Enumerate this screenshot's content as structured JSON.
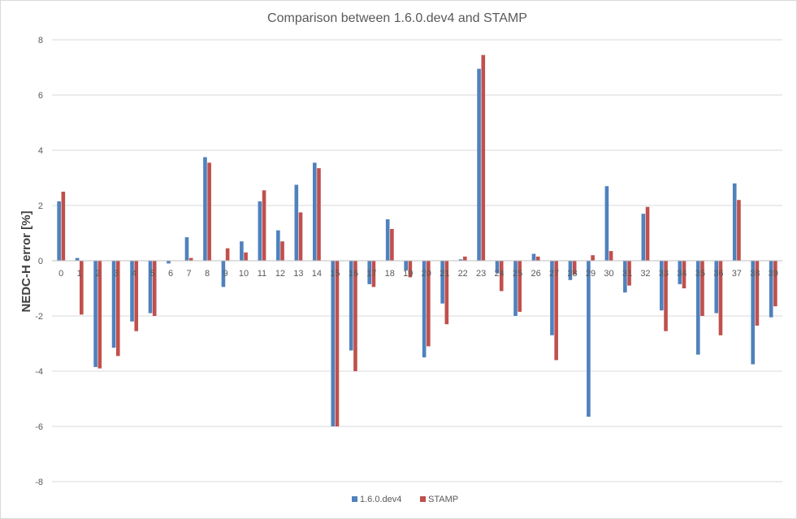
{
  "chart_data": {
    "type": "bar",
    "title": "Comparison between 1.6.0.dev4 and STAMP",
    "xlabel": "",
    "ylabel": "NEDC-H error [%]",
    "ylim": [
      -8,
      8
    ],
    "yticks": [
      -8,
      -6,
      -4,
      -2,
      0,
      2,
      4,
      6,
      8
    ],
    "grid": true,
    "legend": "bottom",
    "categories": [
      "0",
      "1",
      "2",
      "3",
      "4",
      "5",
      "6",
      "7",
      "8",
      "9",
      "10",
      "11",
      "12",
      "13",
      "14",
      "15",
      "16",
      "17",
      "18",
      "19",
      "20",
      "21",
      "22",
      "23",
      "24",
      "25",
      "26",
      "27",
      "28",
      "29",
      "30",
      "31",
      "32",
      "33",
      "34",
      "35",
      "36",
      "37",
      "38",
      "39"
    ],
    "series": [
      {
        "name": "1.6.0.dev4",
        "color": "#4f81bd",
        "values": [
          2.15,
          0.1,
          -3.85,
          -3.15,
          -2.2,
          -1.9,
          -0.1,
          0.85,
          3.75,
          -0.95,
          0.7,
          2.15,
          1.1,
          2.75,
          3.55,
          -6.0,
          -3.25,
          -0.85,
          1.5,
          -0.35,
          -3.5,
          -1.55,
          0.05,
          6.95,
          -0.45,
          -2.0,
          0.25,
          -2.7,
          -0.7,
          -5.65,
          2.7,
          -1.15,
          1.7,
          -1.8,
          -0.85,
          -3.4,
          -1.9,
          2.8,
          -3.75,
          -2.05
        ]
      },
      {
        "name": "STAMP",
        "color": "#c0504d",
        "values": [
          2.5,
          -1.95,
          -3.9,
          -3.45,
          -2.55,
          -2.0,
          0.0,
          0.1,
          3.55,
          0.45,
          0.3,
          2.55,
          0.7,
          1.75,
          3.35,
          -6.0,
          -4.0,
          -0.95,
          1.15,
          -0.6,
          -3.1,
          -2.3,
          0.15,
          7.45,
          -1.1,
          -1.85,
          0.15,
          -3.6,
          -0.5,
          0.2,
          0.35,
          -0.9,
          1.95,
          -2.55,
          -1.0,
          -2.0,
          -2.7,
          2.2,
          -2.35,
          -1.65
        ]
      }
    ]
  }
}
